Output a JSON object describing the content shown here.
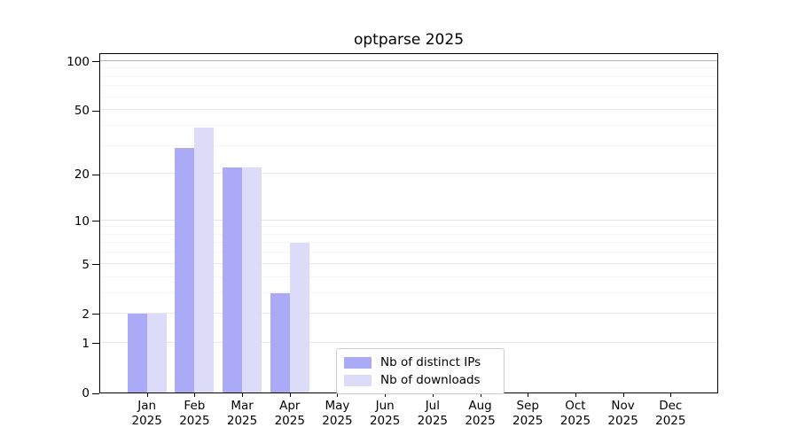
{
  "chart_data": {
    "type": "bar",
    "title": "optparse 2025",
    "x": [
      "Jan 2025",
      "Feb 2025",
      "Mar 2025",
      "Apr 2025",
      "May 2025",
      "Jun 2025",
      "Jul 2025",
      "Aug 2025",
      "Sep 2025",
      "Oct 2025",
      "Nov 2025",
      "Dec 2025"
    ],
    "month_labels": [
      "Jan",
      "Feb",
      "Mar",
      "Apr",
      "May",
      "Jun",
      "Jul",
      "Aug",
      "Sep",
      "Oct",
      "Nov",
      "Dec"
    ],
    "year_label": "2025",
    "series": [
      {
        "name": "Nb of distinct IPs",
        "color": "#aaaaf7",
        "values": [
          2,
          29,
          22,
          3,
          0,
          0,
          0,
          0,
          0,
          0,
          0,
          0
        ]
      },
      {
        "name": "Nb of downloads",
        "color": "#dcdcf9",
        "values": [
          2,
          39,
          22,
          7,
          0,
          0,
          0,
          0,
          0,
          0,
          0,
          0
        ]
      }
    ],
    "xlabel": "",
    "ylabel": "",
    "y_scale": "log1p",
    "ylim": [
      0,
      113
    ],
    "y_ticks": [
      0,
      1,
      2,
      5,
      10,
      20,
      50,
      100
    ],
    "y_minor_gridlines": [
      3,
      4,
      6,
      7,
      8,
      9,
      30,
      40,
      60,
      70,
      80,
      90
    ],
    "grid": true,
    "legend_position": "lower center",
    "colors": {
      "distinct_ips": "#aaaaf7",
      "downloads": "#dcdcf9",
      "grid_major": "#e8e8e8",
      "grid_minor": "#f5f5f5",
      "grid_top": "#b3b3b3",
      "spine": "#000000",
      "background": "#ffffff",
      "text": "#000000"
    }
  }
}
